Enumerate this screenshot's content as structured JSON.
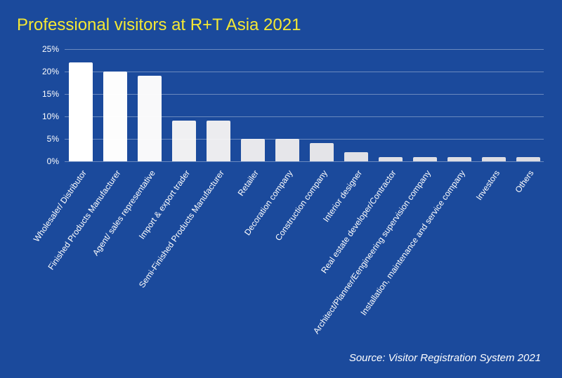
{
  "title": "Professional visitors at R+T Asia 2021",
  "source": "Source: Visitor Registration System 2021",
  "chart": {
    "type": "bar",
    "background_color": "#1b4a9c",
    "title_color": "#f5e833",
    "title_fontsize": 24,
    "axis_label_color": "#ffffff",
    "axis_label_fontsize": 12,
    "grid_color": "rgba(255,255,255,0.35)",
    "ylim": [
      0,
      25
    ],
    "ytick_step": 5,
    "y_suffix": "%",
    "bar_max_width": 34,
    "bar_gap": 12,
    "x_label_rotation": -55,
    "categories": [
      "Wholesaler/ Distributor",
      "Finished Products Manufacturer",
      "Agent/ sales representative",
      "Import & export trader",
      "Semi-Finished Products Manufacturer",
      "Retailer",
      "Decoration company",
      "Construction company",
      "Interior designer",
      "Real estate developer/Contractor",
      "Architect/Planner/Eengineering supervision company",
      "Installation, maintenance and service company",
      "Investors",
      "Others"
    ],
    "values": [
      22,
      20,
      19,
      9,
      9,
      5,
      5,
      4,
      2,
      1,
      1,
      1,
      1,
      1
    ],
    "bar_colors": [
      "#ffffff",
      "#fdfdfd",
      "#f9f9fa",
      "#f0f0f2",
      "#ececef",
      "#e8e8ec",
      "#e6e6ea",
      "#e4e4e8",
      "#e1e1e6",
      "#e0e0e5",
      "#dfdfe4",
      "#dedee3",
      "#dddde3",
      "#dcdce2"
    ]
  }
}
